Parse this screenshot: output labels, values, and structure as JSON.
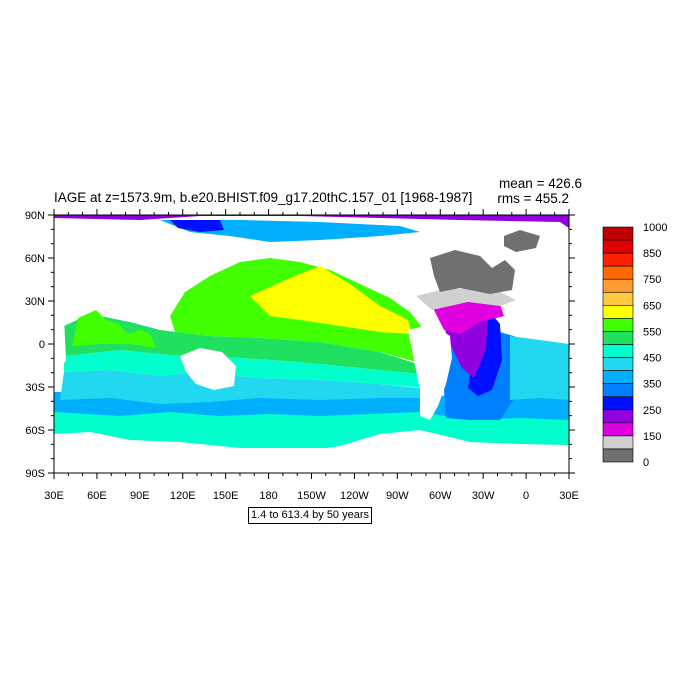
{
  "map": {
    "title": "IAGE at z=1573.9m, b.e20.BHIST.f09_g17.20thC.157_01 [1968-1987]",
    "mean_text": "mean = 426.6",
    "rms_text": "rms = 455.2",
    "contour_info": "1.4 to 613.4 by 50 years",
    "lon_ticks": [
      "30E",
      "60E",
      "90E",
      "120E",
      "150E",
      "180",
      "150W",
      "120W",
      "90W",
      "60W",
      "30W",
      "0",
      "30E"
    ],
    "lat_ticks": [
      "90N",
      "60N",
      "30N",
      "0",
      "30S",
      "60S",
      "90S"
    ]
  },
  "colorbar": {
    "labels": [
      "1000",
      "850",
      "750",
      "650",
      "550",
      "450",
      "350",
      "250",
      "150",
      "0"
    ],
    "colors": [
      "#c00000",
      "#e00000",
      "#ff2000",
      "#ff6a00",
      "#ff9a30",
      "#ffc840",
      "#ffff00",
      "#40ff00",
      "#20e060",
      "#00ffcc",
      "#20d8f0",
      "#00b0ff",
      "#0080ff",
      "#0010ff",
      "#9000e0",
      "#e000e0",
      "#d0d0d0",
      "#707070"
    ]
  },
  "colors": {
    "ocean_yellow": "#ffff00",
    "ocean_green": "#40ff00",
    "ocean_light_green": "#20e060",
    "ocean_aqua": "#00ffcc",
    "ocean_light_blue": "#20d8f0",
    "ocean_blue": "#00b0ff",
    "ocean_mid_blue": "#0080ff",
    "ocean_deep_blue": "#0010ff",
    "ocean_purple": "#9000e0",
    "ocean_magenta": "#e000e0",
    "ocean_light_gray": "#d0d0d0",
    "ocean_dark_gray": "#707070"
  }
}
